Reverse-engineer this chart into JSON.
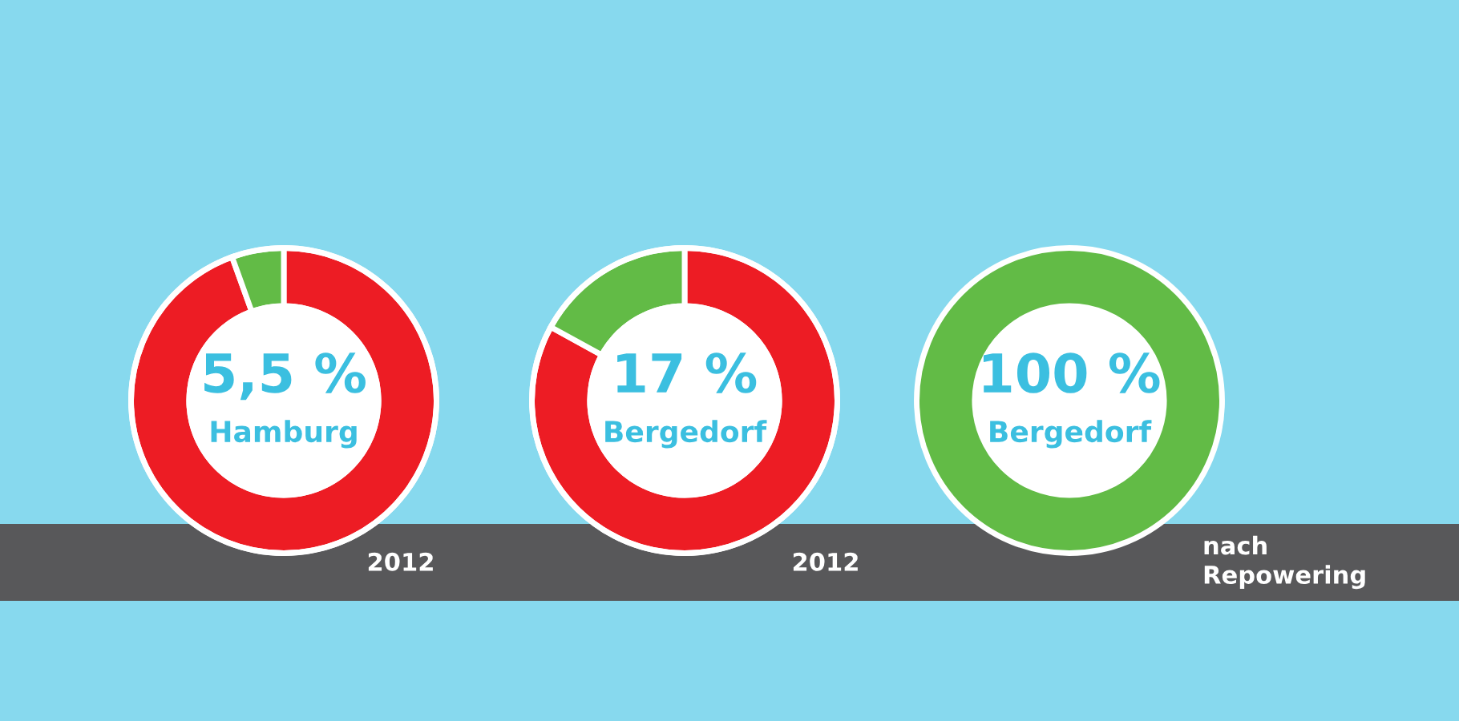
{
  "chart_data": [
    {
      "type": "donut",
      "title": "5,5 %",
      "subtitle": "Hamburg",
      "xlabel": "2012",
      "categories": [
        null,
        null
      ],
      "values": [
        94.5,
        5.5
      ],
      "colors": [
        "#ed1c24",
        "#62bb46"
      ],
      "legend": false
    },
    {
      "type": "donut",
      "title": "17 %",
      "subtitle": "Bergedorf",
      "xlabel": "2012",
      "categories": [
        null,
        null
      ],
      "values": [
        83,
        17
      ],
      "colors": [
        "#ed1c24",
        "#62bb46"
      ],
      "legend": false
    },
    {
      "type": "donut",
      "title": "100 %",
      "subtitle": "Bergedorf",
      "xlabel": "nach\nRepowering",
      "categories": [
        null
      ],
      "values": [
        100
      ],
      "colors": [
        "#62bb46"
      ],
      "legend": false
    }
  ]
}
